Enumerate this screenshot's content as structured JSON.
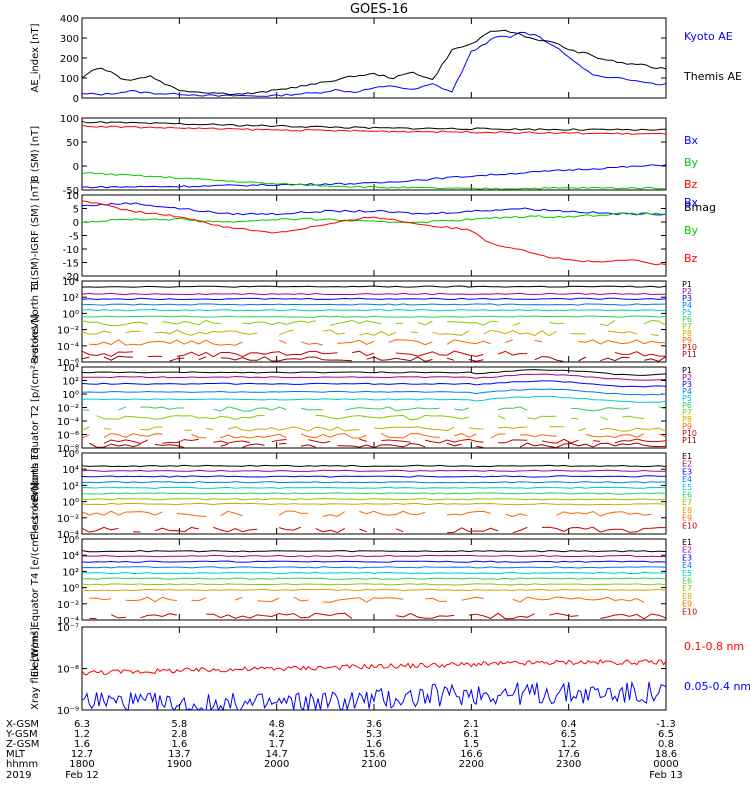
{
  "title": "GOES-16",
  "colors": {
    "black": "#000000",
    "blue": "#0000ff",
    "green": "#00c800",
    "red": "#ff0000",
    "p_channels": [
      "#000000",
      "#aa0088",
      "#0000ff",
      "#0077ff",
      "#00cccc",
      "#33cc66",
      "#88cc00",
      "#ccaa00",
      "#ff6600",
      "#cc0000",
      "#990000"
    ],
    "e_channels": [
      "#000000",
      "#aa0088",
      "#0000ff",
      "#0077ff",
      "#00cccc",
      "#33cc66",
      "#88cc00",
      "#ccaa00",
      "#ff6600",
      "#cc0000",
      "#990000"
    ]
  },
  "chart_data": [
    {
      "type": "line",
      "name": "ae-index",
      "ylabel": "AE_index [nT]",
      "ylim": [
        0,
        400
      ],
      "yticks": [
        "0",
        "100",
        "200",
        "300",
        "400"
      ],
      "series": [
        {
          "name": "Kyoto AE",
          "color": "#0000ff",
          "x": [
            0,
            0.1,
            0.2,
            0.3,
            0.5,
            0.7,
            0.9,
            1.0,
            1.2,
            1.4,
            1.6,
            1.8,
            2.0,
            2.2,
            2.4,
            2.6,
            2.8,
            3.0,
            3.2,
            3.4,
            3.6,
            3.8,
            4.0,
            4.1,
            4.2,
            4.3,
            4.4,
            4.5,
            4.6,
            4.7,
            4.8,
            4.9,
            5.0,
            5.1,
            5.2,
            5.3,
            5.4,
            5.5,
            5.6,
            5.7,
            5.8,
            5.9,
            6.0
          ],
          "y": [
            20,
            20,
            18,
            22,
            35,
            25,
            20,
            20,
            15,
            10,
            12,
            10,
            12,
            20,
            25,
            40,
            30,
            50,
            60,
            40,
            70,
            30,
            230,
            260,
            290,
            310,
            300,
            330,
            320,
            310,
            270,
            250,
            200,
            170,
            130,
            110,
            100,
            100,
            90,
            90,
            80,
            70,
            70
          ]
        },
        {
          "name": "Themis AE",
          "color": "#000000",
          "x": [
            0,
            0.1,
            0.2,
            0.3,
            0.4,
            0.5,
            0.7,
            0.9,
            1.0,
            1.2,
            1.4,
            1.6,
            1.8,
            2.0,
            2.2,
            2.4,
            2.6,
            2.8,
            3.0,
            3.2,
            3.4,
            3.6,
            3.8,
            4.0,
            4.1,
            4.2,
            4.3,
            4.4,
            4.5,
            4.6,
            4.7,
            4.8,
            4.9,
            5.0,
            5.1,
            5.2,
            5.3,
            5.4,
            5.5,
            5.6,
            5.7,
            5.8,
            5.9,
            6.0
          ],
          "y": [
            100,
            140,
            150,
            130,
            100,
            90,
            110,
            60,
            40,
            30,
            25,
            20,
            25,
            40,
            55,
            70,
            90,
            110,
            120,
            100,
            130,
            90,
            240,
            270,
            300,
            330,
            340,
            330,
            320,
            300,
            290,
            280,
            270,
            240,
            230,
            220,
            200,
            190,
            180,
            170,
            170,
            160,
            150,
            150
          ]
        }
      ],
      "legend": [
        "Kyoto AE",
        "Themis AE"
      ]
    },
    {
      "type": "line",
      "name": "b-sm",
      "ylabel": "B (SM) [nT]",
      "ylim": [
        -55,
        125
      ],
      "yticks": [
        "-50",
        "0",
        "50",
        "100"
      ],
      "series": [
        {
          "name": "Bx",
          "color": "#0000ff",
          "x": [
            0,
            1,
            2,
            3,
            4,
            5,
            6
          ],
          "y": [
            -48,
            -46,
            -42,
            -38,
            -20,
            -5,
            8
          ]
        },
        {
          "name": "By",
          "color": "#00c800",
          "x": [
            0,
            1,
            2,
            3,
            4,
            5,
            6
          ],
          "y": [
            -12,
            -25,
            -40,
            -48,
            -52,
            -50,
            -50
          ]
        },
        {
          "name": "Bz",
          "color": "#ff0000",
          "x": [
            0,
            1,
            2,
            3,
            4,
            5,
            6
          ],
          "y": [
            105,
            100,
            95,
            92,
            90,
            87,
            85
          ]
        },
        {
          "name": "Bmag",
          "color": "#000000",
          "x": [
            0,
            1,
            2,
            3,
            4,
            5,
            6
          ],
          "y": [
            115,
            110,
            105,
            100,
            98,
            96,
            95
          ]
        }
      ],
      "legend": [
        "Bx",
        "By",
        "Bz",
        "Bmag"
      ]
    },
    {
      "type": "line",
      "name": "b-sm-igrf",
      "ylabel": "B (SM)-IGRF (SM) [nT]",
      "ylim": [
        -20,
        10
      ],
      "yticks": [
        "-20",
        "-15",
        "-10",
        "-5",
        "0",
        "5",
        "10"
      ],
      "series": [
        {
          "name": "Bx",
          "color": "#0000ff",
          "x": [
            0,
            0.5,
            1,
            1.5,
            2,
            2.5,
            3,
            3.5,
            4,
            4.5,
            5,
            5.5,
            6
          ],
          "y": [
            6,
            7,
            5,
            3,
            3,
            4,
            4,
            3,
            4,
            5,
            4,
            3,
            3
          ]
        },
        {
          "name": "By",
          "color": "#00c800",
          "x": [
            0,
            0.5,
            1,
            1.5,
            2,
            2.5,
            3,
            3.5,
            4,
            4.5,
            5,
            5.5,
            6
          ],
          "y": [
            0,
            1,
            1,
            0,
            1,
            1,
            0,
            0,
            1,
            2,
            2,
            3,
            3
          ]
        },
        {
          "name": "Bz",
          "color": "#ff0000",
          "x": [
            0,
            0.5,
            1,
            1.5,
            2,
            2.5,
            3,
            3.5,
            4,
            4.2,
            4.5,
            4.8,
            5,
            5.3,
            5.6,
            6
          ],
          "y": [
            8,
            4,
            2,
            -2,
            -4,
            -1,
            2,
            -1,
            -3,
            -8,
            -10,
            -13,
            -14,
            -15,
            -14,
            -16
          ]
        }
      ],
      "legend": [
        "Bx",
        "By",
        "Bz"
      ]
    },
    {
      "type": "line",
      "name": "protons-north",
      "ylabel": "Protons North T1",
      "yscale": "log",
      "ylim": [
        -6,
        4
      ],
      "yticks": [
        "10⁻⁶",
        "10⁻⁴",
        "10⁻²",
        "10⁰",
        "10²",
        "10⁴"
      ],
      "channels": [
        "P1",
        "P2",
        "P3",
        "P4",
        "P5",
        "P6",
        "P7",
        "P8",
        "P9",
        "P10",
        "P11"
      ],
      "levels": [
        3.3,
        2.4,
        1.8,
        1.1,
        0.4,
        -0.4,
        -1.2,
        -2.4,
        -3.6,
        -5,
        -5.6
      ]
    },
    {
      "type": "line",
      "name": "protons-equator",
      "ylabel": "Protons Equator T2 [p/(cm²-s-sr-keV)]",
      "yscale": "log",
      "ylim": [
        -8,
        4
      ],
      "yticks": [
        "10⁻⁸",
        "10⁻⁶",
        "10⁻⁴",
        "10⁻²",
        "10⁰",
        "10²",
        "10⁴"
      ],
      "channels": [
        "P1",
        "P2",
        "P3",
        "P4",
        "P5",
        "P6",
        "P7",
        "P8",
        "P9",
        "P10",
        "P11"
      ],
      "levels": [
        3.2,
        2.5,
        1.5,
        0.3,
        -0.8,
        -2.2,
        -3.5,
        -5.2,
        -6.2,
        -7,
        -7.6
      ]
    },
    {
      "type": "line",
      "name": "electrons-north",
      "ylabel": "Electrons North T3",
      "yscale": "log",
      "ylim": [
        -4,
        6
      ],
      "yticks": [
        "10⁻⁴",
        "10⁻²",
        "10⁰",
        "10²",
        "10⁴",
        "10⁶"
      ],
      "channels": [
        "E1",
        "E2",
        "E3",
        "E4",
        "E5",
        "E6",
        "E7",
        "E8",
        "E9",
        "E10"
      ],
      "levels": [
        4.4,
        3.8,
        3.1,
        2.4,
        1.7,
        1.0,
        0.3,
        -0.3,
        -1.5,
        -3.5
      ]
    },
    {
      "type": "line",
      "name": "electrons-equator",
      "ylabel": "Electrons Equator T4 [e/(cm²-s-sr-keV)]",
      "yscale": "log",
      "ylim": [
        -4,
        6
      ],
      "yticks": [
        "10⁻⁴",
        "10⁻²",
        "10⁰",
        "10²",
        "10⁴",
        "10⁶"
      ],
      "channels": [
        "E1",
        "E2",
        "E3",
        "E4",
        "E5",
        "E6",
        "E7",
        "E8",
        "E9",
        "E10"
      ],
      "levels": [
        4.5,
        3.9,
        3.2,
        2.5,
        1.8,
        1.1,
        0.4,
        -0.3,
        -1.5,
        -3.5
      ]
    },
    {
      "type": "line",
      "name": "xray-flux",
      "ylabel": "Xray flux [W/m²]",
      "yscale": "log",
      "ylim": [
        -9,
        -7
      ],
      "yticks": [
        "10⁻⁹",
        "10⁻⁸",
        "10⁻⁷"
      ],
      "series": [
        {
          "name": "0.1-0.8 nm",
          "color": "#ff0000",
          "x": [
            0,
            1,
            2,
            3,
            4,
            5,
            6
          ],
          "y": [
            -8.1,
            -8.05,
            -8.0,
            -7.95,
            -7.9,
            -7.85,
            -7.85
          ]
        },
        {
          "name": "0.05-0.4 nm",
          "color": "#0000ff",
          "x": [
            0,
            1,
            2,
            3,
            4,
            5,
            6
          ],
          "y": [
            -8.75,
            -8.9,
            -8.85,
            -8.75,
            -8.6,
            -8.6,
            -8.6
          ]
        }
      ],
      "legend": [
        "0.1-0.8 nm",
        "0.05-0.4 nm"
      ]
    }
  ],
  "xaxis": {
    "rows": [
      {
        "label": "X-GSM",
        "values": [
          "6.3",
          "5.8",
          "4.8",
          "3.6",
          "2.1",
          "0.4",
          "-1.3"
        ]
      },
      {
        "label": "Y-GSM",
        "values": [
          "1.2",
          "2.8",
          "4.2",
          "5.3",
          "6.1",
          "6.5",
          "6.5"
        ]
      },
      {
        "label": "Z-GSM",
        "values": [
          "1.6",
          "1.6",
          "1.7",
          "1.6",
          "1.5",
          "1.2",
          "0.8"
        ]
      },
      {
        "label": "MLT",
        "values": [
          "12.7",
          "13.7",
          "14.7",
          "15.6",
          "16.6",
          "17.6",
          "18.6"
        ]
      },
      {
        "label": "hhmm",
        "values": [
          "1800",
          "1900",
          "2000",
          "2100",
          "2200",
          "2300",
          "0000"
        ]
      }
    ],
    "year": "2019",
    "start_date": "Feb 12",
    "end_date": "Feb 13"
  }
}
